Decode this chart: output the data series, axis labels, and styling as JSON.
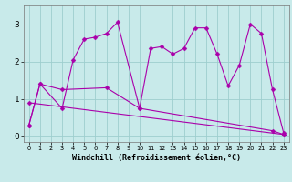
{
  "background_color": "#c8eaea",
  "line_color": "#aa00aa",
  "xlabel": "Windchill (Refroidissement éolien,°C)",
  "xlim": [
    -0.5,
    23.5
  ],
  "ylim": [
    -0.15,
    3.5
  ],
  "yticks": [
    0,
    1,
    2,
    3
  ],
  "xticks": [
    0,
    1,
    2,
    3,
    4,
    5,
    6,
    7,
    8,
    9,
    10,
    11,
    12,
    13,
    14,
    15,
    16,
    17,
    18,
    19,
    20,
    21,
    22,
    23
  ],
  "series1_x": [
    0,
    1,
    3,
    4,
    5,
    6,
    7,
    8,
    10,
    11,
    12,
    13,
    14,
    15,
    16,
    17,
    18,
    19,
    20,
    21,
    22,
    23
  ],
  "series1_y": [
    0.3,
    1.4,
    0.75,
    2.05,
    2.6,
    2.65,
    2.75,
    3.05,
    0.75,
    2.35,
    2.4,
    2.2,
    2.35,
    2.9,
    2.9,
    2.2,
    1.35,
    1.9,
    3.0,
    2.75,
    1.25,
    0.1
  ],
  "series2_x": [
    0,
    1,
    3,
    7,
    10,
    22,
    23
  ],
  "series2_y": [
    0.3,
    1.4,
    1.25,
    1.3,
    0.75,
    0.15,
    0.05
  ],
  "series3_x": [
    0,
    23
  ],
  "series3_y": [
    0.9,
    0.05
  ],
  "grid_color": "#9ecece",
  "markersize": 2.5,
  "lw": 0.8
}
